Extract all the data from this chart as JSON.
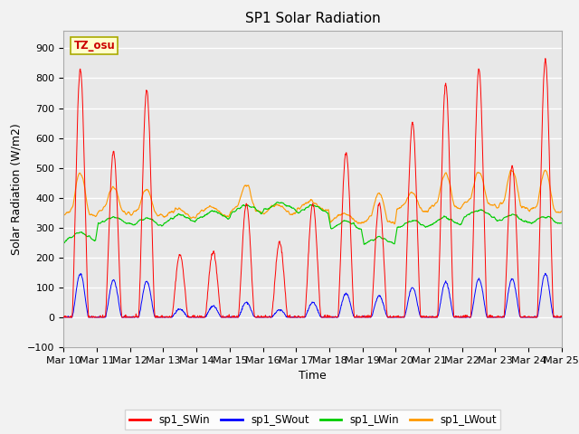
{
  "title": "SP1 Solar Radiation",
  "xlabel": "Time",
  "ylabel": "Solar Radiation (W/m2)",
  "ylim": [
    -100,
    960
  ],
  "yticks": [
    -100,
    0,
    100,
    200,
    300,
    400,
    500,
    600,
    700,
    800,
    900
  ],
  "n_days": 15,
  "n_pts_per_day": 96,
  "date_labels": [
    "Mar 10",
    "Mar 11",
    "Mar 12",
    "Mar 13",
    "Mar 14",
    "Mar 15",
    "Mar 16",
    "Mar 17",
    "Mar 18",
    "Mar 19",
    "Mar 20",
    "Mar 21",
    "Mar 22",
    "Mar 23",
    "Mar 24",
    "Mar 25"
  ],
  "colors": {
    "sp1_SWin": "#ff0000",
    "sp1_SWout": "#0000ff",
    "sp1_LWin": "#00cc00",
    "sp1_LWout": "#ff9900"
  },
  "legend_labels": [
    "sp1_SWin",
    "sp1_SWout",
    "sp1_LWin",
    "sp1_LWout"
  ],
  "tz_label": "TZ_osu",
  "plot_bg": "#e8e8e8",
  "fig_bg": "#f2f2f2",
  "grid_color": "#ffffff",
  "title_fontsize": 11,
  "tick_fontsize": 8,
  "label_fontsize": 9,
  "legend_fontsize": 8.5,
  "day_peaks_swin": [
    830,
    555,
    760,
    210,
    220,
    380,
    250,
    380,
    550,
    380,
    650,
    780,
    830,
    505,
    860
  ],
  "day_peaks_swout": [
    145,
    125,
    120,
    28,
    38,
    50,
    25,
    50,
    80,
    72,
    100,
    118,
    128,
    128,
    145
  ],
  "lw_in_base": [
    270,
    325,
    320,
    330,
    342,
    362,
    372,
    362,
    308,
    258,
    312,
    322,
    347,
    332,
    326
  ],
  "lw_out_base": [
    355,
    365,
    355,
    348,
    355,
    368,
    360,
    372,
    332,
    330,
    370,
    380,
    390,
    380,
    368
  ],
  "lw_out_day_peaks": [
    470,
    420,
    415,
    0,
    0,
    430,
    0,
    0,
    0,
    400,
    405,
    470,
    475,
    480,
    478
  ]
}
